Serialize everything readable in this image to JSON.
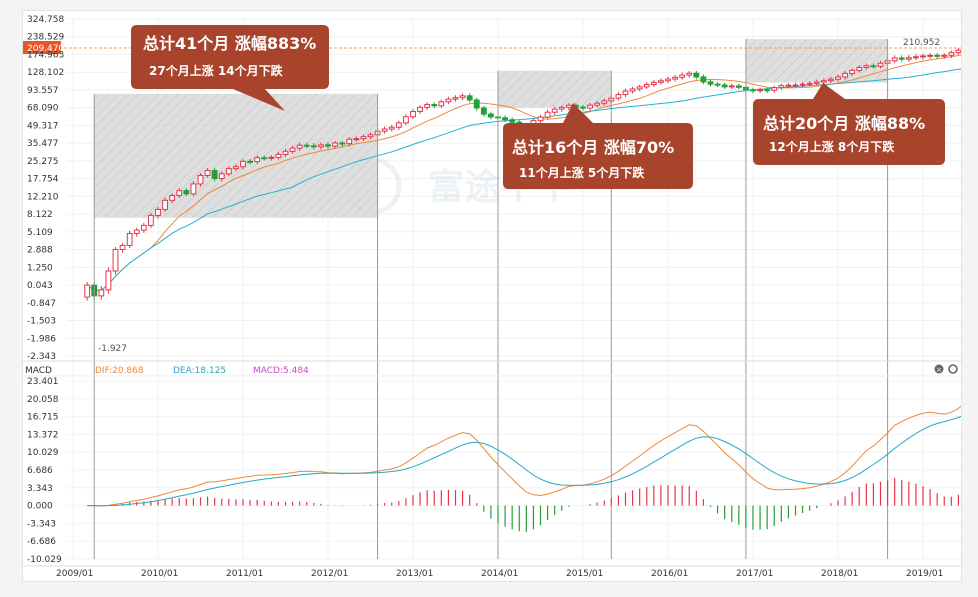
{
  "chart_data": {
    "type": "candlestick",
    "price_axis_ticks": [
      "324.758",
      "238.529",
      "174.963",
      "128.102",
      "93.557",
      "68.090",
      "49.317",
      "35.477",
      "25.275",
      "17.754",
      "12.210",
      "8.122",
      "5.109",
      "2.888",
      "1.250",
      "0.043",
      "-0.847",
      "-1.503",
      "-1.986",
      "-2.343"
    ],
    "last_price": "209.470",
    "high_label": "210.952",
    "low_label": "-1.927",
    "macd_legend": {
      "title": "MACD",
      "dif": "DIF:20.868",
      "dea": "DEA:18.125",
      "macd": "MACD:5.484"
    },
    "macd_axis_ticks": [
      "23.401",
      "20.058",
      "16.715",
      "13.372",
      "10.029",
      "6.686",
      "3.343",
      "0.000",
      "-3.343",
      "-6.686",
      "-10.029"
    ],
    "x_ticks": [
      "2009/01",
      "2010/01",
      "2011/01",
      "2012/01",
      "2013/01",
      "2014/01",
      "2015/01",
      "2016/01",
      "2017/01",
      "2018/01",
      "2019/01"
    ],
    "watermark": "富途牛牛",
    "annotations": [
      {
        "title": "总计41个月 涨幅883%",
        "sub": "27个月上涨  14个月下跌"
      },
      {
        "title": "总计16个月 涨幅70%",
        "sub": "11个月上涨  5个月下跌"
      },
      {
        "title": "总计20个月 涨幅88%",
        "sub": "12个月上涨  8个月下跌"
      }
    ],
    "highlight_ranges": [
      {
        "start": "2009/04",
        "end": "2012/08",
        "low": 7.5,
        "high": 88
      },
      {
        "start": "2014/01",
        "end": "2015/05",
        "low": 68,
        "high": 132
      },
      {
        "start": "2016/12",
        "end": "2018/08",
        "low": 108,
        "high": 230
      }
    ],
    "monthly_close": [
      0.04,
      -0.5,
      -0.2,
      1.0,
      2.9,
      3.4,
      4.9,
      5.4,
      6.2,
      7.9,
      9.2,
      11.3,
      12.5,
      14.0,
      13.0,
      16.1,
      19.1,
      21.2,
      17.8,
      19.8,
      22.0,
      22.8,
      25.1,
      25.0,
      27.1,
      26.7,
      27.3,
      29.0,
      30.8,
      32.6,
      34.3,
      34.0,
      33.4,
      34.5,
      33.8,
      35.6,
      35.2,
      38.5,
      39.0,
      40.5,
      42.0,
      44.8,
      46.5,
      47.9,
      52.0,
      58.5,
      64.1,
      68.6,
      72.6,
      70.8,
      76.5,
      80.4,
      82.4,
      85.1,
      79.2,
      67.8,
      61.3,
      58.3,
      57.4,
      55.4,
      52.8,
      49.9,
      49.0,
      54.4,
      58.1,
      63.3,
      66.6,
      68.5,
      71.6,
      68.8,
      67.7,
      71.7,
      74.5,
      77.8,
      81.8,
      86.9,
      92.0,
      95.5,
      99.6,
      104.2,
      108.4,
      111.4,
      114.8,
      118.1,
      122.5,
      126.1,
      118.9,
      109.2,
      104.8,
      103.2,
      99.5,
      101.4,
      98.7,
      93.9,
      92.6,
      94.0,
      93.1,
      98.1,
      101.8,
      102.9,
      103.2,
      104.8,
      106.4,
      108.8,
      111.6,
      114.4,
      118.8,
      125.7,
      133.0,
      140.6,
      145.1,
      143.8,
      151.7,
      158.3,
      165.8,
      162.5,
      166.4,
      168.9,
      171.1,
      172.7,
      170.4,
      172.8,
      181.5,
      190.0,
      202.1,
      209.5
    ],
    "macd_dif": [],
    "macd_dea": [],
    "macd_hist": []
  }
}
